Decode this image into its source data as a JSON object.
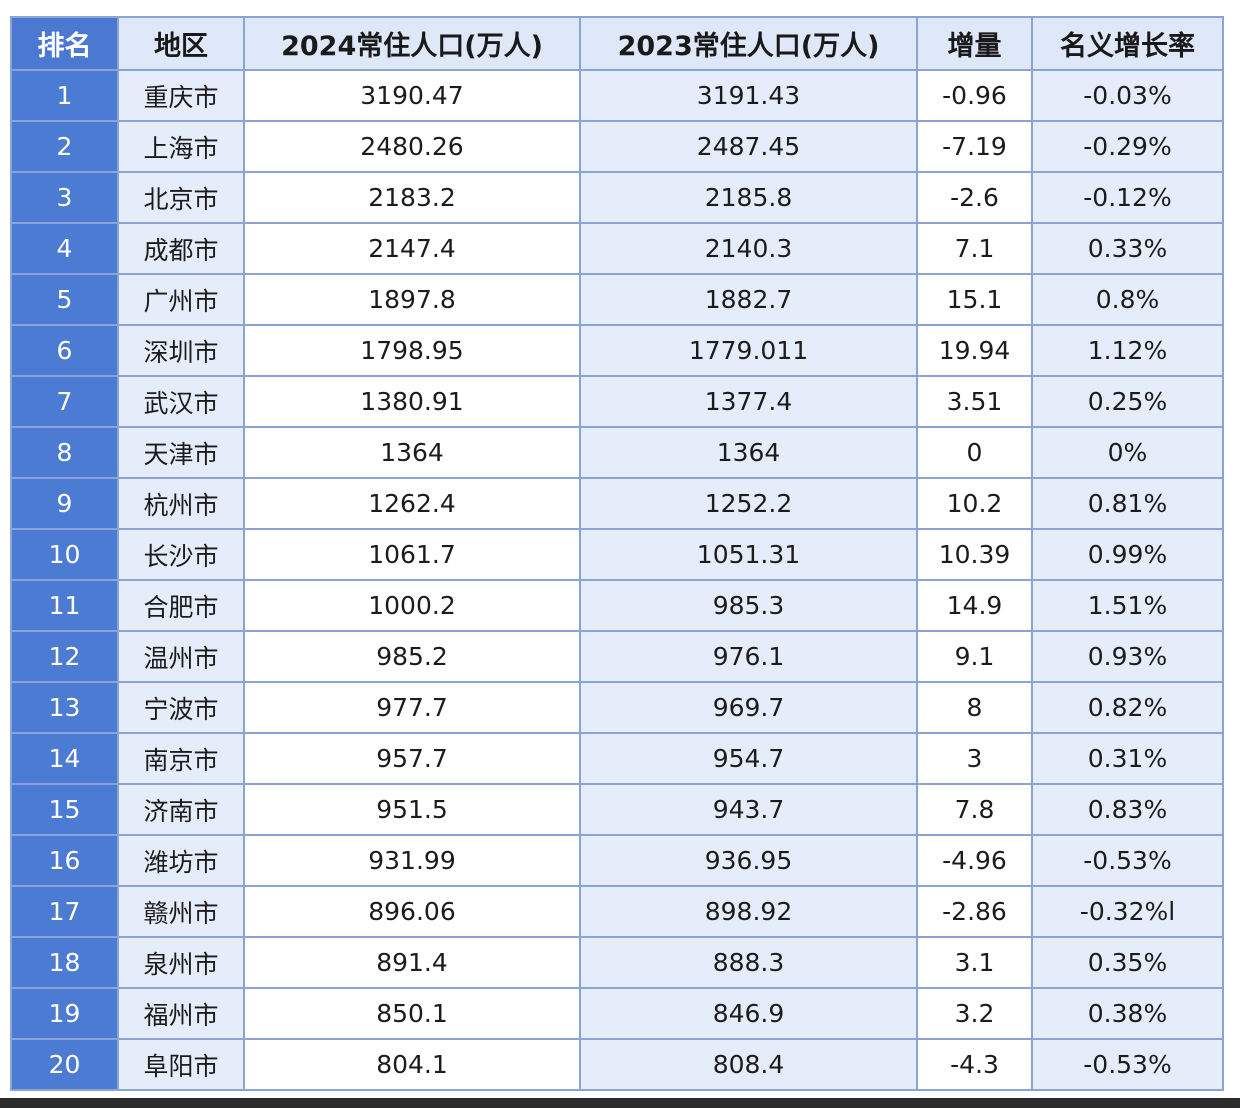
{
  "table": {
    "headers": {
      "rank": "排名",
      "region": "地区",
      "pop_2024": "2024常住人口(万人)",
      "pop_2023": "2023常住人口(万人)",
      "increase": "增量",
      "growth_rate": "名义增长率"
    },
    "rows": [
      {
        "rank": "1",
        "region": "重庆市",
        "pop_2024": "3190.47",
        "pop_2023": "3191.43",
        "increase": "-0.96",
        "growth_rate": "-0.03%"
      },
      {
        "rank": "2",
        "region": "上海市",
        "pop_2024": "2480.26",
        "pop_2023": "2487.45",
        "increase": "-7.19",
        "growth_rate": "-0.29%"
      },
      {
        "rank": "3",
        "region": "北京市",
        "pop_2024": "2183.2",
        "pop_2023": "2185.8",
        "increase": "-2.6",
        "growth_rate": "-0.12%"
      },
      {
        "rank": "4",
        "region": "成都市",
        "pop_2024": "2147.4",
        "pop_2023": "2140.3",
        "increase": "7.1",
        "growth_rate": "0.33%"
      },
      {
        "rank": "5",
        "region": "广州市",
        "pop_2024": "1897.8",
        "pop_2023": "1882.7",
        "increase": "15.1",
        "growth_rate": "0.8%"
      },
      {
        "rank": "6",
        "region": "深圳市",
        "pop_2024": "1798.95",
        "pop_2023": "1779.011",
        "increase": "19.94",
        "growth_rate": "1.12%"
      },
      {
        "rank": "7",
        "region": "武汉市",
        "pop_2024": "1380.91",
        "pop_2023": "1377.4",
        "increase": "3.51",
        "growth_rate": "0.25%"
      },
      {
        "rank": "8",
        "region": "天津市",
        "pop_2024": "1364",
        "pop_2023": "1364",
        "increase": "0",
        "growth_rate": "0%"
      },
      {
        "rank": "9",
        "region": "杭州市",
        "pop_2024": "1262.4",
        "pop_2023": "1252.2",
        "increase": "10.2",
        "growth_rate": "0.81%"
      },
      {
        "rank": "10",
        "region": "长沙市",
        "pop_2024": "1061.7",
        "pop_2023": "1051.31",
        "increase": "10.39",
        "growth_rate": "0.99%"
      },
      {
        "rank": "11",
        "region": "合肥市",
        "pop_2024": "1000.2",
        "pop_2023": "985.3",
        "increase": "14.9",
        "growth_rate": "1.51%"
      },
      {
        "rank": "12",
        "region": "温州市",
        "pop_2024": "985.2",
        "pop_2023": "976.1",
        "increase": "9.1",
        "growth_rate": "0.93%"
      },
      {
        "rank": "13",
        "region": "宁波市",
        "pop_2024": "977.7",
        "pop_2023": "969.7",
        "increase": "8",
        "growth_rate": "0.82%"
      },
      {
        "rank": "14",
        "region": "南京市",
        "pop_2024": "957.7",
        "pop_2023": "954.7",
        "increase": "3",
        "growth_rate": "0.31%"
      },
      {
        "rank": "15",
        "region": "济南市",
        "pop_2024": "951.5",
        "pop_2023": "943.7",
        "increase": "7.8",
        "growth_rate": "0.83%"
      },
      {
        "rank": "16",
        "region": "潍坊市",
        "pop_2024": "931.99",
        "pop_2023": "936.95",
        "increase": "-4.96",
        "growth_rate": "-0.53%"
      },
      {
        "rank": "17",
        "region": "赣州市",
        "pop_2024": "896.06",
        "pop_2023": "898.92",
        "increase": "-2.86",
        "growth_rate": "-0.32%l"
      },
      {
        "rank": "18",
        "region": "泉州市",
        "pop_2024": "891.4",
        "pop_2023": "888.3",
        "increase": "3.1",
        "growth_rate": "0.35%"
      },
      {
        "rank": "19",
        "region": "福州市",
        "pop_2024": "850.1",
        "pop_2023": "846.9",
        "increase": "3.2",
        "growth_rate": "0.38%"
      },
      {
        "rank": "20",
        "region": "阜阳市",
        "pop_2024": "804.1",
        "pop_2023": "808.4",
        "increase": "-4.3",
        "growth_rate": "-0.53%"
      }
    ]
  },
  "colors": {
    "rank_column": "#4c7bd3",
    "header_background": "#dfe8f8",
    "alternate_column": "#e6edfa",
    "grid_line": "#8aa4d6"
  }
}
